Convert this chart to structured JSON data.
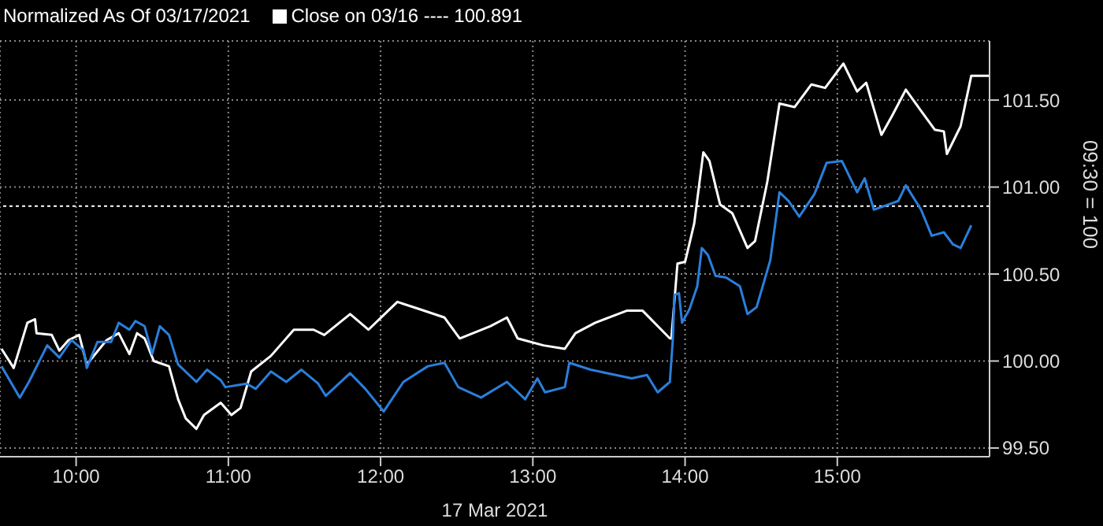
{
  "chart_data": {
    "type": "line",
    "title": "Normalized As Of 03/17/2021",
    "xlabel": "17 Mar 2021",
    "ylabel": "09:30 = 100",
    "xlim": [
      9.5,
      16
    ],
    "xticks": [
      {
        "value": 10,
        "label": "10:00"
      },
      {
        "value": 11,
        "label": "11:00"
      },
      {
        "value": 12,
        "label": "12:00"
      },
      {
        "value": 13,
        "label": "13:00"
      },
      {
        "value": 14,
        "label": "14:00"
      },
      {
        "value": 15,
        "label": "15:00"
      }
    ],
    "ylim": [
      99.45,
      101.84
    ],
    "yticks": [
      {
        "value": 99.5,
        "label": "99.50"
      },
      {
        "value": 100,
        "label": "100.00"
      },
      {
        "value": 100.5,
        "label": "100.50"
      },
      {
        "value": 101,
        "label": "101.00"
      },
      {
        "value": 101.5,
        "label": "101.50"
      }
    ],
    "grid": true,
    "marker": "none",
    "line_style": "solid",
    "ref_lines": [
      {
        "axis": "y",
        "value": 100.891,
        "label": "Close on 03/16 ---- 100.891",
        "color": "#ffffff",
        "line_style": "dotted"
      }
    ],
    "series": [
      {
        "color": "#ffffff",
        "x": [
          9.51,
          9.59,
          9.68,
          9.73,
          9.74,
          9.84,
          9.89,
          9.95,
          10.02,
          10.07,
          10.2,
          10.28,
          10.35,
          10.4,
          10.45,
          10.51,
          10.61,
          10.67,
          10.72,
          10.79,
          10.84,
          10.95,
          11.02,
          11.08,
          11.15,
          11.28,
          11.43,
          11.56,
          11.63,
          11.8,
          11.92,
          12.11,
          12.25,
          12.42,
          12.52,
          12.72,
          12.83,
          12.9,
          13.07,
          13.21,
          13.28,
          13.41,
          13.62,
          13.72,
          13.9,
          13.91,
          13.95,
          14,
          14.06,
          14.12,
          14.16,
          14.23,
          14.31,
          14.41,
          14.46,
          14.54,
          14.62,
          14.72,
          14.83,
          14.92,
          15.04,
          15.13,
          15.19,
          15.29,
          15.36,
          15.45,
          15.54,
          15.64,
          15.7,
          15.72,
          15.81,
          15.88,
          16
        ],
        "values": [
          100.07,
          99.96,
          100.22,
          100.24,
          100.16,
          100.15,
          100.06,
          100.12,
          100.15,
          99.98,
          100.12,
          100.16,
          100.04,
          100.16,
          100.13,
          100,
          99.97,
          99.78,
          99.67,
          99.61,
          99.69,
          99.76,
          99.69,
          99.73,
          99.94,
          100.03,
          100.18,
          100.18,
          100.15,
          100.27,
          100.18,
          100.34,
          100.3,
          100.25,
          100.13,
          100.2,
          100.25,
          100.13,
          100.09,
          100.07,
          100.16,
          100.22,
          100.29,
          100.29,
          100.13,
          100.13,
          100.56,
          100.57,
          100.79,
          101.2,
          101.15,
          100.9,
          100.85,
          100.65,
          100.69,
          101.03,
          101.48,
          101.46,
          101.59,
          101.57,
          101.71,
          101.55,
          101.6,
          101.3,
          101.41,
          101.56,
          101.45,
          101.33,
          101.32,
          101.19,
          101.35,
          101.64,
          101.64
        ]
      },
      {
        "color": "#2a7fdc",
        "x": [
          9.51,
          9.63,
          9.69,
          9.81,
          9.89,
          9.97,
          10.05,
          10.07,
          10.14,
          10.23,
          10.28,
          10.35,
          10.39,
          10.45,
          10.5,
          10.55,
          10.61,
          10.67,
          10.79,
          10.86,
          10.95,
          10.98,
          11.12,
          11.18,
          11.28,
          11.38,
          11.48,
          11.59,
          11.64,
          11.8,
          11.9,
          12.02,
          12.15,
          12.31,
          12.42,
          12.51,
          12.66,
          12.83,
          12.95,
          13.03,
          13.08,
          13.21,
          13.24,
          13.38,
          13.65,
          13.75,
          13.82,
          13.9,
          13.92,
          13.93,
          13.96,
          13.98,
          14.03,
          14.08,
          14.11,
          14.15,
          14.2,
          14.27,
          14.36,
          14.41,
          14.47,
          14.56,
          14.62,
          14.68,
          14.75,
          14.85,
          14.93,
          15.03,
          15.13,
          15.18,
          15.24,
          15.4,
          15.45,
          15.55,
          15.62,
          15.7,
          15.76,
          15.81,
          15.88
        ],
        "values": [
          99.97,
          99.79,
          99.88,
          100.09,
          100.02,
          100.12,
          100.06,
          99.96,
          100.11,
          100.11,
          100.22,
          100.18,
          100.23,
          100.2,
          100.04,
          100.2,
          100.15,
          99.98,
          99.88,
          99.95,
          99.89,
          99.85,
          99.87,
          99.84,
          99.94,
          99.88,
          99.95,
          99.87,
          99.8,
          99.93,
          99.84,
          99.71,
          99.88,
          99.97,
          99.99,
          99.85,
          99.79,
          99.88,
          99.78,
          99.9,
          99.82,
          99.85,
          99.99,
          99.95,
          99.9,
          99.92,
          99.82,
          99.88,
          100.13,
          100.38,
          100.39,
          100.22,
          100.3,
          100.43,
          100.65,
          100.61,
          100.49,
          100.48,
          100.43,
          100.27,
          100.31,
          100.58,
          100.97,
          100.92,
          100.83,
          100.96,
          101.14,
          101.15,
          100.97,
          101.05,
          100.87,
          100.92,
          101.01,
          100.87,
          100.72,
          100.74,
          100.67,
          100.65,
          100.78
        ]
      }
    ]
  }
}
